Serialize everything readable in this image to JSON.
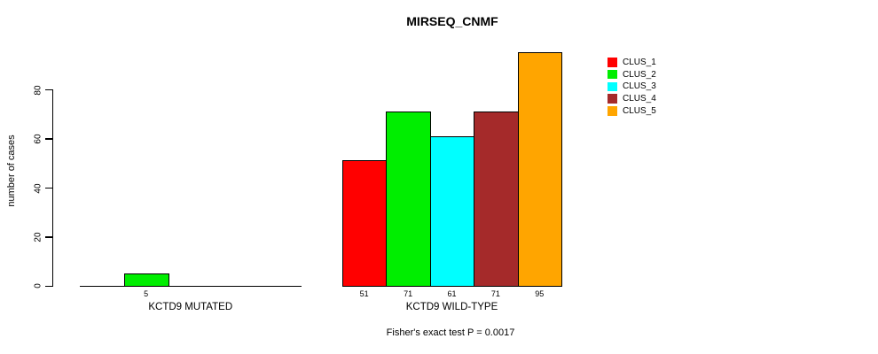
{
  "chart_data": {
    "type": "bar",
    "title": "MIRSEQ_CNMF",
    "subtitle": "Fisher's exact test P = 0.0017",
    "ylabel": "number of cases",
    "yticks": [
      0,
      20,
      40,
      60,
      80
    ],
    "ylim": [
      0,
      95
    ],
    "grid": false,
    "legend_position": "right",
    "legend": [
      {
        "label": "CLUS_1",
        "color": "#ff0000"
      },
      {
        "label": "CLUS_2",
        "color": "#00ee00"
      },
      {
        "label": "CLUS_3",
        "color": "#00ffff"
      },
      {
        "label": "CLUS_4",
        "color": "#a52a2a"
      },
      {
        "label": "CLUS_5",
        "color": "#ffa500"
      }
    ],
    "groups": [
      {
        "label": "KCTD9 MUTATED",
        "bars": [
          {
            "cluster": "CLUS_2",
            "slot": 1,
            "value": 5,
            "color": "#00ee00"
          }
        ]
      },
      {
        "label": "KCTD9 WILD-TYPE",
        "bars": [
          {
            "cluster": "CLUS_1",
            "slot": 0,
            "value": 51,
            "color": "#ff0000"
          },
          {
            "cluster": "CLUS_2",
            "slot": 1,
            "value": 71,
            "color": "#00ee00"
          },
          {
            "cluster": "CLUS_3",
            "slot": 2,
            "value": 61,
            "color": "#00ffff"
          },
          {
            "cluster": "CLUS_4",
            "slot": 3,
            "value": 71,
            "color": "#a52a2a"
          },
          {
            "cluster": "CLUS_5",
            "slot": 4,
            "value": 95,
            "color": "#ffa500"
          }
        ]
      }
    ]
  }
}
